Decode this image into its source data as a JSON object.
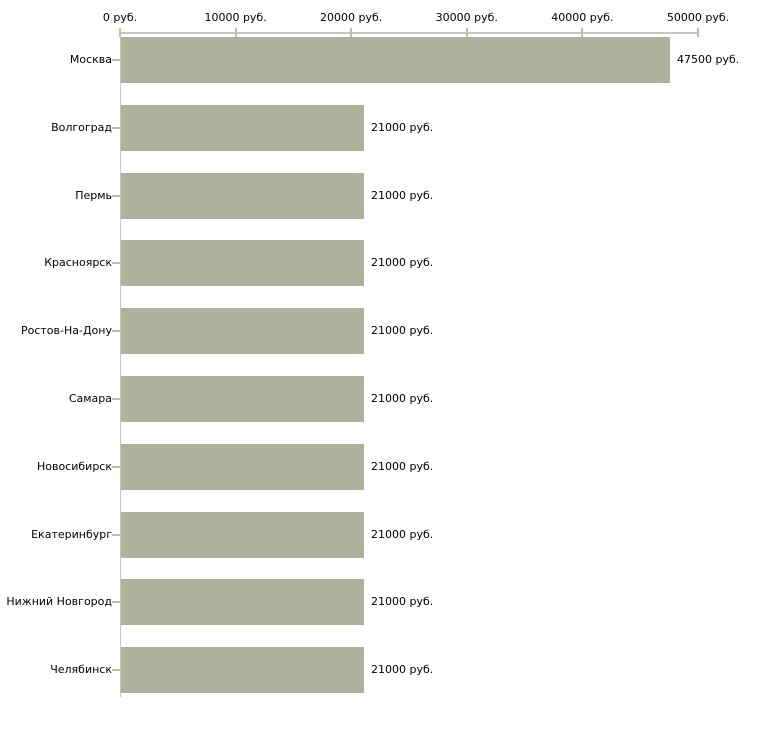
{
  "colors": {
    "background": "#ffffff",
    "bar": "#adb29a",
    "axis_line": "#c6c6c6",
    "tick_mark": "#c2c19e",
    "text": "#000000"
  },
  "chart_data": {
    "type": "bar",
    "orientation": "horizontal",
    "title": "",
    "xlabel": "",
    "ylabel": "",
    "grid": false,
    "legend": false,
    "unit": "руб.",
    "xlim": [
      0,
      50000
    ],
    "x_tick_values": [
      0,
      10000,
      20000,
      30000,
      40000,
      50000
    ],
    "x_tick_labels": [
      "0 руб.",
      "10000 руб.",
      "20000 руб.",
      "30000 руб.",
      "40000 руб.",
      "50000 руб."
    ],
    "categories": [
      "Москва",
      "Волгоград",
      "Пермь",
      "Красноярск",
      "Ростов-На-Дону",
      "Самара",
      "Новосибирск",
      "Екатеринбург",
      "Нижний Новгород",
      "Челябинск"
    ],
    "values": [
      47500,
      21000,
      21000,
      21000,
      21000,
      21000,
      21000,
      21000,
      21000,
      21000
    ],
    "value_labels": [
      "47500 руб.",
      "21000 руб.",
      "21000 руб.",
      "21000 руб.",
      "21000 руб.",
      "21000 руб.",
      "21000 руб.",
      "21000 руб.",
      "21000 руб.",
      "21000 руб."
    ]
  }
}
